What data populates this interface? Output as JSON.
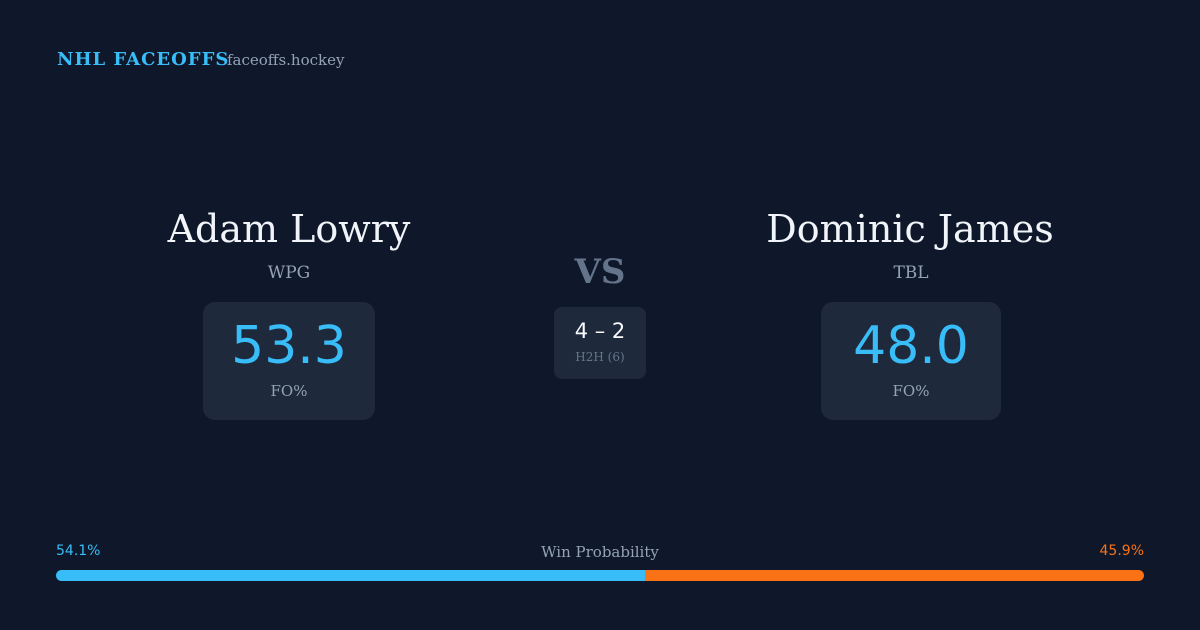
{
  "header": {
    "title": "NHL FACEOFFS",
    "site": "faceoffs.hockey"
  },
  "players": [
    {
      "name": "Adam Lowry",
      "team": "WPG",
      "stat": "53.3",
      "stat_label": "FO%"
    },
    {
      "name": "Dominic James",
      "team": "TBL",
      "stat": "48.0",
      "stat_label": "FO%"
    }
  ],
  "versus": {
    "label": "VS",
    "score": "4 – 2",
    "caption": "H2H (6)"
  },
  "win_probability": {
    "label": "Win Probability",
    "home": {
      "value": 54.1,
      "label": "54.1%",
      "color": "#38bdf8"
    },
    "away": {
      "value": 45.9,
      "label": "45.9%",
      "color": "#f97316"
    }
  }
}
